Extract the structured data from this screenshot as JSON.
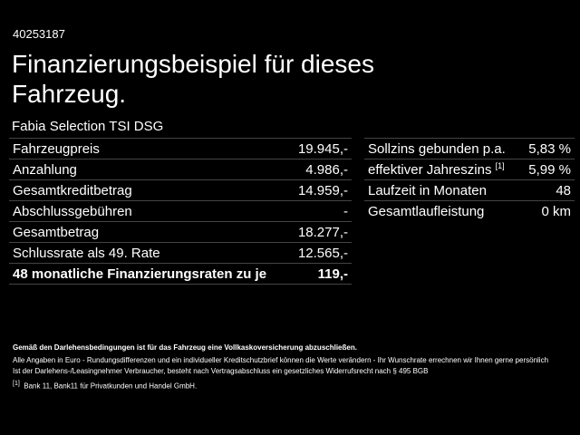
{
  "header": {
    "id": "40253187",
    "title": "Finanzierungsbeispiel für dieses Fahrzeug.",
    "subtitle": "Fabia Selection TSI DSG"
  },
  "left_table": {
    "rows": [
      [
        "Fahrzeugpreis",
        "19.945,-"
      ],
      [
        "Anzahlung",
        "4.986,-"
      ],
      [
        "Gesamtkreditbetrag",
        "14.959,-"
      ],
      [
        "Abschlussgebühren",
        "-"
      ],
      [
        "Gesamtbetrag",
        "18.277,-"
      ],
      [
        "Schlussrate als 49. Rate",
        "12.565,-"
      ],
      [
        "48 monatliche Finanzierungsraten zu je",
        "119,-"
      ]
    ]
  },
  "right_table": {
    "rows": [
      [
        "Sollzins gebunden p.a.",
        "5,83 %"
      ],
      [
        "effektiver Jahreszins",
        "5,99 %"
      ],
      [
        "Laufzeit in Monaten",
        "48"
      ],
      [
        "Gesamtlaufleistung",
        "0 km"
      ]
    ],
    "footnote_ref": "[1]"
  },
  "notes": {
    "bold": "Gemäß den Darlehensbedingungen ist für das Fahrzeug eine Vollkaskoversicherung abzuschließen.",
    "lines": [
      "Alle Angaben in Euro - Rundungsdifferenzen und ein individueller Kreditschutzbrief können die Werte verändern - Ihr Wunschrate errechnen wir Ihnen gerne persönlich",
      "Ist der Darlehens-/Leasingnehmer Verbraucher, besteht nach Vertragsabschluss ein gesetzliches Widerrufsrecht nach § 495 BGB"
    ]
  },
  "footnote": {
    "marker": "[1]",
    "text": "Bank 11, Bank11 für Privatkunden und Handel GmbH."
  }
}
